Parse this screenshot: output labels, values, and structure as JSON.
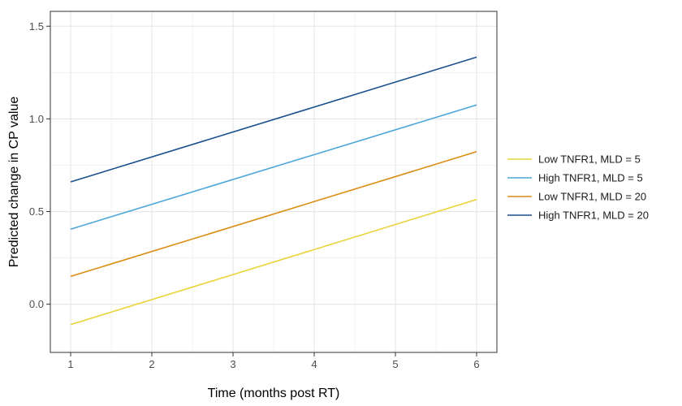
{
  "chart_data": {
    "type": "line",
    "title": "",
    "xlabel": "Time (months post RT)",
    "ylabel": "Predicted change in CP value",
    "xlim": [
      0.75,
      6.25
    ],
    "ylim": [
      -0.26,
      1.58
    ],
    "x_ticks": [
      1,
      2,
      3,
      4,
      5,
      6
    ],
    "x_tick_labels": [
      "1",
      "2",
      "3",
      "4",
      "5",
      "6"
    ],
    "y_ticks": [
      0.0,
      0.5,
      1.0,
      1.5
    ],
    "y_tick_labels": [
      "0.0",
      "0.5",
      "1.0",
      "1.5"
    ],
    "grid": true,
    "legend_position": "right",
    "series": [
      {
        "name": "Low TNFR1, MLD = 5",
        "color": "#e8d43a",
        "x": [
          1,
          6
        ],
        "y": [
          -0.11,
          0.565
        ]
      },
      {
        "name": "High TNFR1, MLD = 5",
        "color": "#4da6d9",
        "x": [
          1,
          6
        ],
        "y": [
          0.405,
          1.075
        ]
      },
      {
        "name": "Low TNFR1, MLD = 20",
        "color": "#d98e12",
        "x": [
          1,
          6
        ],
        "y": [
          0.15,
          0.823
        ]
      },
      {
        "name": "High TNFR1, MLD = 20",
        "color": "#1a4f8c",
        "x": [
          1,
          6
        ],
        "y": [
          0.66,
          1.333
        ]
      }
    ]
  }
}
